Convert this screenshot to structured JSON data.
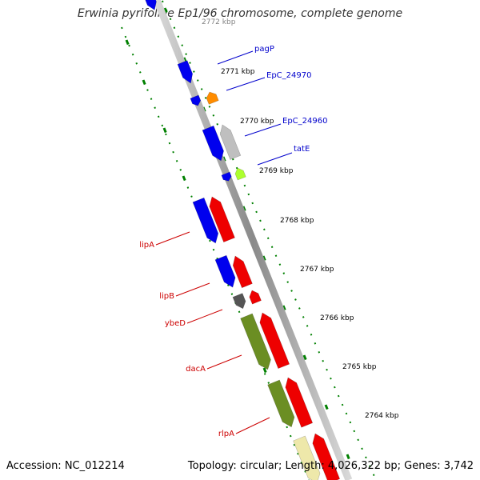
{
  "title": "Erwinia pyrifoliae Ep1/96 chromosome, complete genome",
  "accession": "Accession: NC_012214",
  "topology": "Topology: circular; Length: 4,026,322 bp; Genes: 3,742",
  "colors": {
    "forward_gene": "#0000ee",
    "reverse_gene": "#ee0000",
    "green_gene": "#6b8e23",
    "orange_gene": "#ff8c00",
    "gray_gene": "#bfbfbf",
    "darkgray_gene": "#555555",
    "lime_gene": "#adff2f",
    "khaki_gene": "#eee8aa",
    "backbone": "#888888",
    "ticks": "#008000",
    "label_forward": "#0000cc",
    "label_reverse": "#cc0000"
  },
  "scale_labels": [
    "2772 kbp",
    "2771 kbp",
    "2770 kbp",
    "2769 kbp",
    "2768 kbp",
    "2767 kbp",
    "2766 kbp",
    "2765 kbp",
    "2764 kbp"
  ],
  "genes": [
    {
      "name": "pagP",
      "strand": "forward"
    },
    {
      "name": "EpC_24970",
      "strand": "forward"
    },
    {
      "name": "EpC_24960",
      "strand": "forward"
    },
    {
      "name": "tatE",
      "strand": "forward"
    },
    {
      "name": "lipA",
      "strand": "reverse"
    },
    {
      "name": "lipB",
      "strand": "reverse"
    },
    {
      "name": "ybeD",
      "strand": "reverse"
    },
    {
      "name": "dacA",
      "strand": "reverse"
    },
    {
      "name": "rlpA",
      "strand": "reverse"
    }
  ]
}
